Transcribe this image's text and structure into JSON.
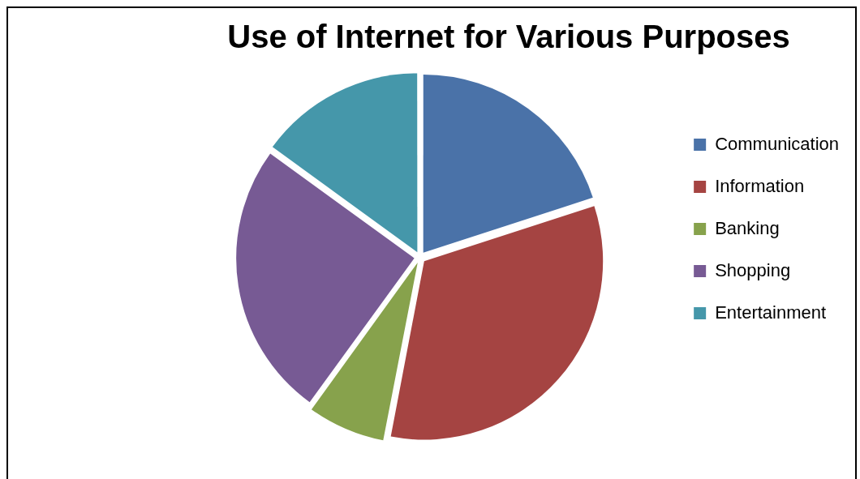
{
  "chart_data": {
    "type": "pie",
    "title": "Use of Internet for Various Purposes",
    "categories": [
      "Communication",
      "Information",
      "Banking",
      "Shopping",
      "Entertainment"
    ],
    "values": [
      20,
      33,
      7,
      25,
      15
    ],
    "colors": [
      "#4a72a8",
      "#a54442",
      "#87a24c",
      "#775a94",
      "#4597aa"
    ],
    "legend": "right"
  }
}
